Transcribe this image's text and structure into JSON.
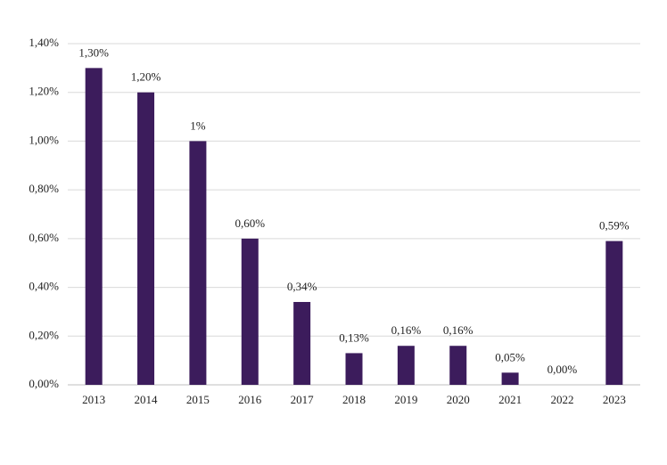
{
  "chart_data": {
    "type": "bar",
    "categories": [
      "2013",
      "2014",
      "2015",
      "2016",
      "2017",
      "2018",
      "2019",
      "2020",
      "2021",
      "2022",
      "2023"
    ],
    "values": [
      1.3,
      1.2,
      1,
      0.6,
      0.34,
      0.13,
      0.16,
      0.16,
      0.05,
      0.0,
      0.59
    ],
    "value_labels": [
      "1,30%",
      "1,20%",
      "1%",
      "0,60%",
      "0,34%",
      "0,13%",
      "0,16%",
      "0,16%",
      "0,05%",
      "0,00%",
      "0,59%"
    ],
    "color": "#3c1c5c",
    "ylim": [
      0,
      1.4
    ],
    "yticks": [
      {
        "value": 0,
        "label": "0,00%"
      },
      {
        "value": 0.2,
        "label": "0,20%"
      },
      {
        "value": 0.4,
        "label": "0,40%"
      },
      {
        "value": 0.6,
        "label": "0,60%"
      },
      {
        "value": 0.8,
        "label": "0,80%"
      },
      {
        "value": 1.0,
        "label": "1,00%"
      },
      {
        "value": 1.2,
        "label": "1,20%"
      },
      {
        "value": 1.4,
        "label": "1,40%"
      }
    ],
    "grid": true
  }
}
